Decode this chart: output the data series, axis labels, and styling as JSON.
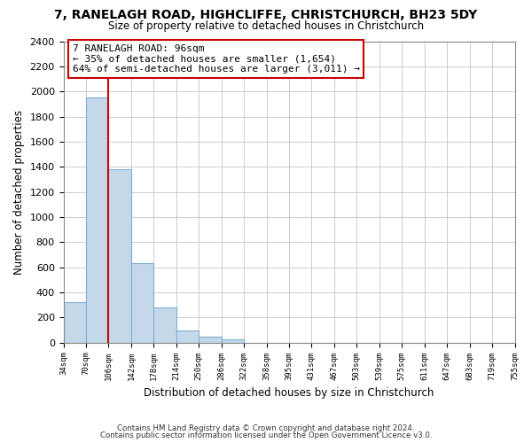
{
  "title": "7, RANELAGH ROAD, HIGHCLIFFE, CHRISTCHURCH, BH23 5DY",
  "subtitle": "Size of property relative to detached houses in Christchurch",
  "xlabel": "Distribution of detached houses by size in Christchurch",
  "ylabel": "Number of detached properties",
  "bin_labels": [
    "34sqm",
    "70sqm",
    "106sqm",
    "142sqm",
    "178sqm",
    "214sqm",
    "250sqm",
    "286sqm",
    "322sqm",
    "358sqm",
    "395sqm",
    "431sqm",
    "467sqm",
    "503sqm",
    "539sqm",
    "575sqm",
    "611sqm",
    "647sqm",
    "683sqm",
    "719sqm",
    "755sqm"
  ],
  "bin_values": [
    320,
    1950,
    1380,
    630,
    280,
    95,
    45,
    25,
    0,
    0,
    0,
    0,
    0,
    0,
    0,
    0,
    0,
    0,
    0,
    0
  ],
  "bar_color": "#c5d8ea",
  "bar_edge_color": "#7bafd4",
  "vline_x_index": 2,
  "vline_color": "#cc0000",
  "annotation_text": "7 RANELAGH ROAD: 96sqm\n← 35% of detached houses are smaller (1,654)\n64% of semi-detached houses are larger (3,011) →",
  "annotation_box_color": "#ffffff",
  "annotation_box_edge": "#cc0000",
  "ylim": [
    0,
    2400
  ],
  "yticks": [
    0,
    200,
    400,
    600,
    800,
    1000,
    1200,
    1400,
    1600,
    1800,
    2000,
    2200,
    2400
  ],
  "footer_line1": "Contains HM Land Registry data © Crown copyright and database right 2024.",
  "footer_line2": "Contains public sector information licensed under the Open Government Licence v3.0.",
  "bg_color": "#ffffff",
  "grid_color": "#cccccc"
}
